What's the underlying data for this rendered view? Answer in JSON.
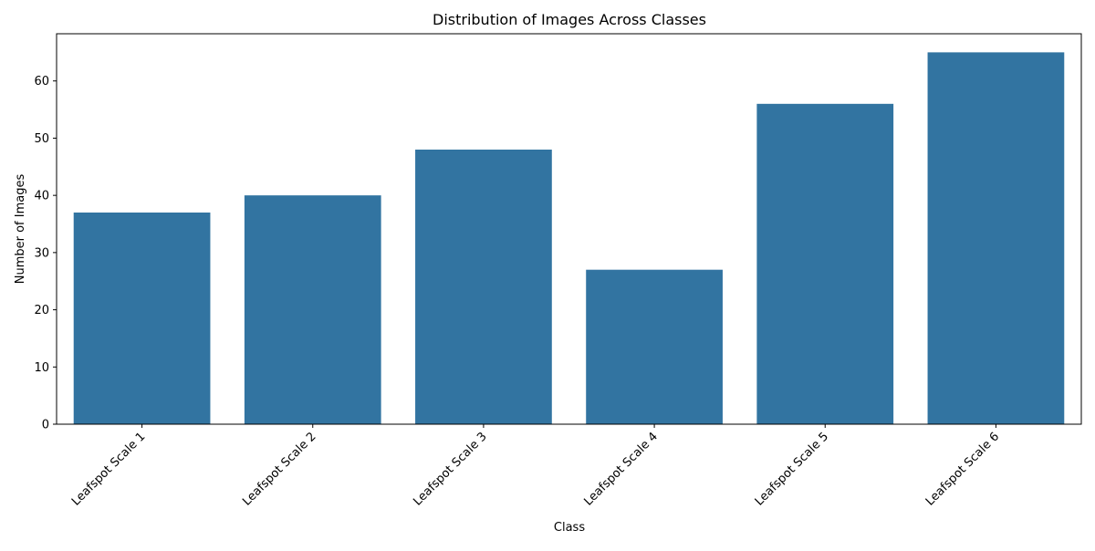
{
  "chart_data": {
    "type": "bar",
    "title": "Distribution of Images Across Classes",
    "xlabel": "Class",
    "ylabel": "Number of Images",
    "categories": [
      "Leafspot Scale 1",
      "Leafspot Scale 2",
      "Leafspot Scale 3",
      "Leafspot Scale 4",
      "Leafspot Scale 5",
      "Leafspot Scale 6"
    ],
    "values": [
      37,
      40,
      48,
      27,
      56,
      65
    ],
    "ylim": [
      0,
      68.25
    ],
    "yticks": [
      0,
      10,
      20,
      30,
      40,
      50,
      60
    ],
    "xtick_rotation_deg": 45,
    "grid": false,
    "legend": "none",
    "colors": {
      "bar": "#3274a1",
      "axis": "#000000",
      "background": "#ffffff"
    }
  }
}
